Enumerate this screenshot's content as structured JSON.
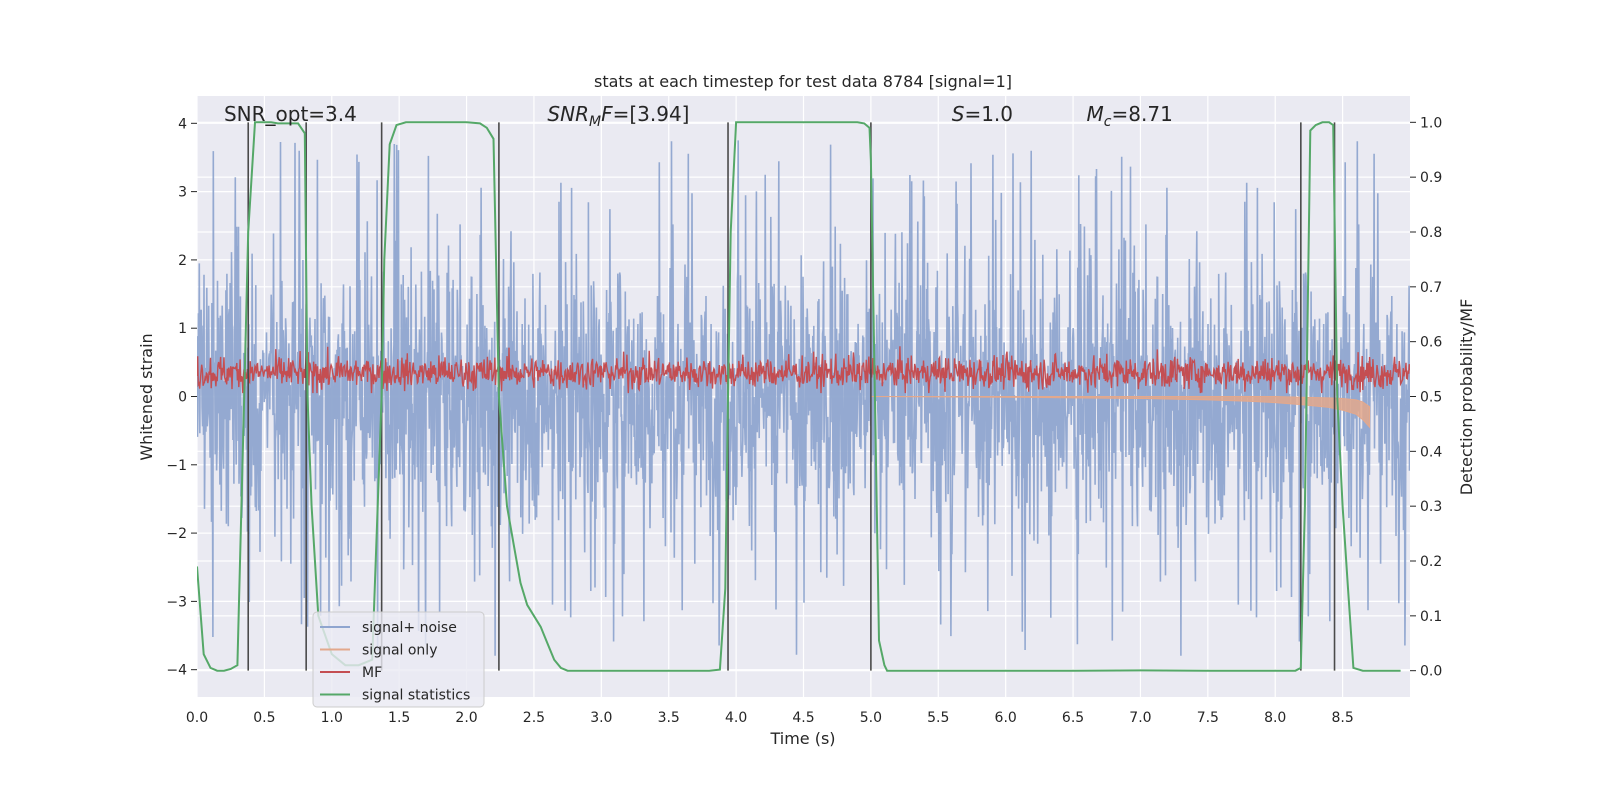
{
  "chart_data": {
    "type": "line",
    "title": "stats at each timestep for test data 8784 [signal=1]",
    "xlabel": "Time (s)",
    "ylabel": "Whitened strain",
    "y2label": "Detection probability/MF",
    "xlim": [
      0,
      9.0
    ],
    "ylim": [
      -4.4,
      4.4
    ],
    "y2lim": [
      -0.048,
      1.048
    ],
    "xticks": [
      "0.0",
      "0.5",
      "1.0",
      "1.5",
      "2.0",
      "2.5",
      "3.0",
      "3.5",
      "4.0",
      "4.5",
      "5.0",
      "5.5",
      "6.0",
      "6.5",
      "7.0",
      "7.5",
      "8.0",
      "8.5"
    ],
    "yticks": [
      "−4",
      "−3",
      "−2",
      "−1",
      "0",
      "1",
      "2",
      "3",
      "4"
    ],
    "y2ticks": [
      "0.0",
      "0.1",
      "0.2",
      "0.3",
      "0.4",
      "0.5",
      "0.6",
      "0.7",
      "0.8",
      "0.9",
      "1.0"
    ],
    "colors": {
      "noise": "#8fa5cf",
      "signal_only": "#e3a88c",
      "mf": "#c44e52",
      "stats": "#55a868",
      "vline": "#4a4a4a",
      "plot_bg": "#eaeaf2",
      "grid": "#ffffff"
    },
    "annotations": [
      {
        "pre": "SNR_opt=3.4",
        "sub": "",
        "post": "",
        "x": 0.2,
        "italic": false
      },
      {
        "pre": "SNR",
        "sub": "M",
        "post": "F=[3.94]",
        "x": 2.6,
        "italic": true
      },
      {
        "pre": "S",
        "sub": "",
        "post": "=1.0",
        "x": 5.6,
        "italic": true
      },
      {
        "pre": "M",
        "sub": "c",
        "post": "=8.71",
        "x": 6.6,
        "italic": true
      }
    ],
    "legend": {
      "position": "lower-left",
      "entries": [
        {
          "label": "signal+ noise",
          "color": "#8fa5cf"
        },
        {
          "label": "signal only",
          "color": "#e3a88c"
        },
        {
          "label": "MF",
          "color": "#c44e52"
        },
        {
          "label": "signal statistics",
          "color": "#55a868"
        }
      ]
    },
    "vertical_lines_x": [
      0.38,
      0.81,
      1.37,
      2.24,
      3.94,
      5.0,
      8.19,
      8.44
    ],
    "series": [
      {
        "name": "signal statistics",
        "axis": "right",
        "x": [
          0.0,
          0.05,
          0.1,
          0.15,
          0.2,
          0.25,
          0.3,
          0.35,
          0.38,
          0.43,
          0.5,
          0.55,
          0.6,
          0.65,
          0.7,
          0.75,
          0.8,
          0.82,
          0.85,
          0.9,
          1.0,
          1.1,
          1.2,
          1.3,
          1.37,
          1.39,
          1.43,
          1.48,
          1.55,
          1.6,
          1.7,
          1.8,
          1.9,
          2.0,
          2.1,
          2.15,
          2.2,
          2.24,
          2.3,
          2.35,
          2.4,
          2.45,
          2.5,
          2.55,
          2.6,
          2.65,
          2.7,
          2.75,
          2.8,
          2.9,
          3.0,
          3.2,
          3.4,
          3.6,
          3.8,
          3.88,
          3.92,
          3.94,
          3.96,
          4.0,
          4.1,
          4.3,
          4.5,
          4.7,
          4.9,
          4.95,
          4.99,
          5.0,
          5.03,
          5.06,
          5.1,
          5.12,
          5.2,
          5.5,
          6.0,
          6.5,
          7.0,
          7.5,
          8.0,
          8.15,
          8.19,
          8.22,
          8.26,
          8.3,
          8.35,
          8.4,
          8.43,
          8.46,
          8.5,
          8.54,
          8.58,
          8.65,
          8.75,
          8.85,
          8.93
        ],
        "values": [
          0.19,
          0.03,
          0.005,
          0.0,
          0.0,
          0.003,
          0.01,
          0.5,
          0.8,
          1.0,
          1.0,
          1.0,
          0.998,
          0.998,
          0.998,
          0.998,
          0.98,
          0.5,
          0.3,
          0.1,
          0.03,
          0.01,
          0.01,
          0.02,
          0.5,
          0.75,
          0.96,
          0.995,
          1.0,
          1.0,
          1.0,
          1.0,
          1.0,
          1.0,
          0.998,
          0.99,
          0.97,
          0.5,
          0.3,
          0.23,
          0.16,
          0.12,
          0.1,
          0.08,
          0.05,
          0.02,
          0.005,
          0.0,
          0.0,
          0.0,
          0.0,
          0.0,
          0.0,
          0.0,
          0.0,
          0.002,
          0.15,
          0.5,
          0.8,
          1.0,
          1.0,
          1.0,
          1.0,
          1.0,
          1.0,
          0.998,
          0.99,
          0.93,
          0.5,
          0.055,
          0.01,
          0.0,
          0.0,
          0.0,
          0.0,
          0.0,
          0.0005,
          0.0,
          0.0,
          0.0,
          0.005,
          0.3,
          0.985,
          0.995,
          1.0,
          1.0,
          0.995,
          0.5,
          0.3,
          0.15,
          0.005,
          0.0,
          0.0,
          0.0,
          0.0
        ]
      },
      {
        "name": "signal+ noise",
        "axis": "left",
        "description": "dense oscillating strain, typical band -1.5 to 1.6, peaks up to 4.0 and down to -3.85"
      },
      {
        "name": "MF",
        "axis": "left",
        "description": "noisy red trace centred near 0.35, ranging approx 0.05 to 0.8"
      },
      {
        "name": "signal only",
        "axis": "left",
        "description": "chirp envelope near 0 growing to about -0.45 at t=8.7",
        "x": [
          5.0,
          6.0,
          6.5,
          7.0,
          7.5,
          7.8,
          8.0,
          8.2,
          8.4,
          8.5,
          8.6,
          8.65,
          8.7
        ],
        "upper": [
          0.0,
          0.0,
          0.0,
          0.0,
          0.0,
          0.0,
          0.0,
          -0.01,
          -0.02,
          -0.03,
          -0.05,
          -0.08,
          -0.15
        ],
        "lower": [
          0.0,
          -0.01,
          -0.02,
          -0.03,
          -0.05,
          -0.07,
          -0.09,
          -0.12,
          -0.16,
          -0.2,
          -0.26,
          -0.34,
          -0.45
        ]
      }
    ]
  }
}
